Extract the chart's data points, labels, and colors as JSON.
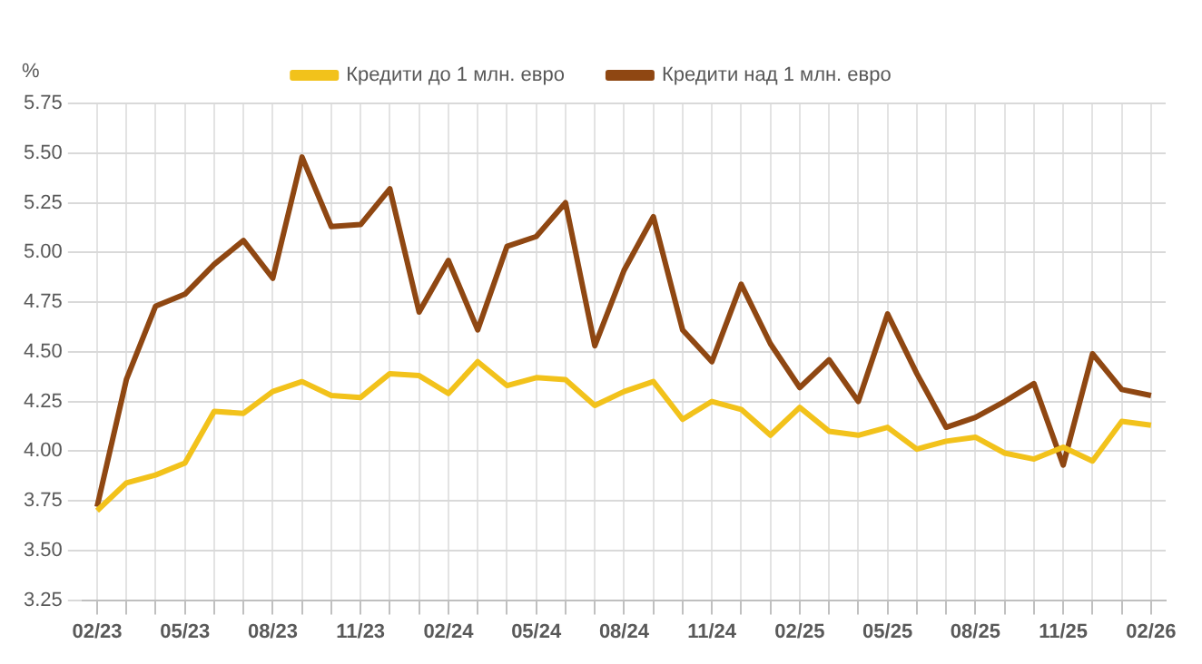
{
  "chart_data": {
    "type": "line",
    "ylabel": "%",
    "categories": [
      "02/23",
      null,
      null,
      "05/23",
      null,
      null,
      "08/23",
      null,
      null,
      "11/23",
      null,
      null,
      "02/24",
      null,
      null,
      "05/24",
      null,
      null,
      "08/24",
      null,
      null,
      "11/24",
      null,
      null,
      "02/25",
      null,
      null,
      "05/25",
      null,
      null,
      "08/25",
      null,
      null,
      "11/25",
      null,
      null,
      "02/26"
    ],
    "series": [
      {
        "name": "Кредити до 1 млн. евро",
        "color": "#f2c21b",
        "values": [
          3.7,
          3.84,
          3.88,
          3.94,
          4.2,
          4.19,
          4.3,
          4.35,
          4.28,
          4.27,
          4.39,
          4.38,
          4.29,
          4.45,
          4.33,
          4.37,
          4.36,
          4.23,
          4.3,
          4.35,
          4.16,
          4.25,
          4.21,
          4.08,
          4.22,
          4.1,
          4.08,
          4.12,
          4.01,
          4.05,
          4.07,
          3.99,
          3.96,
          4.02,
          3.95,
          4.15,
          4.13
        ]
      },
      {
        "name": "Кредити над 1 млн. евро",
        "color": "#8f4712",
        "values": [
          3.72,
          4.36,
          4.73,
          4.79,
          4.94,
          5.06,
          4.87,
          5.48,
          5.13,
          5.14,
          5.32,
          4.7,
          4.96,
          4.61,
          5.03,
          5.08,
          5.25,
          4.53,
          4.91,
          5.18,
          4.61,
          4.45,
          4.84,
          4.54,
          4.32,
          4.46,
          4.25,
          4.69,
          4.39,
          4.12,
          4.17,
          4.25,
          4.34,
          3.93,
          4.49,
          4.31,
          4.28
        ]
      }
    ],
    "ylim": [
      3.25,
      5.75
    ],
    "yticks": [
      3.25,
      {
        "value": 3.5,
        "label": "3.50"
      },
      3.75,
      {
        "value": 4,
        "label": "4.00"
      },
      4.25,
      {
        "value": 4.5,
        "label": "4.50"
      },
      4.75,
      {
        "value": 5,
        "label": "5.00"
      },
      5.25,
      {
        "value": 5.5,
        "label": "5.50"
      },
      5.75
    ],
    "grid": true,
    "legend": "top",
    "marker": "none",
    "line_style": "solid"
  }
}
